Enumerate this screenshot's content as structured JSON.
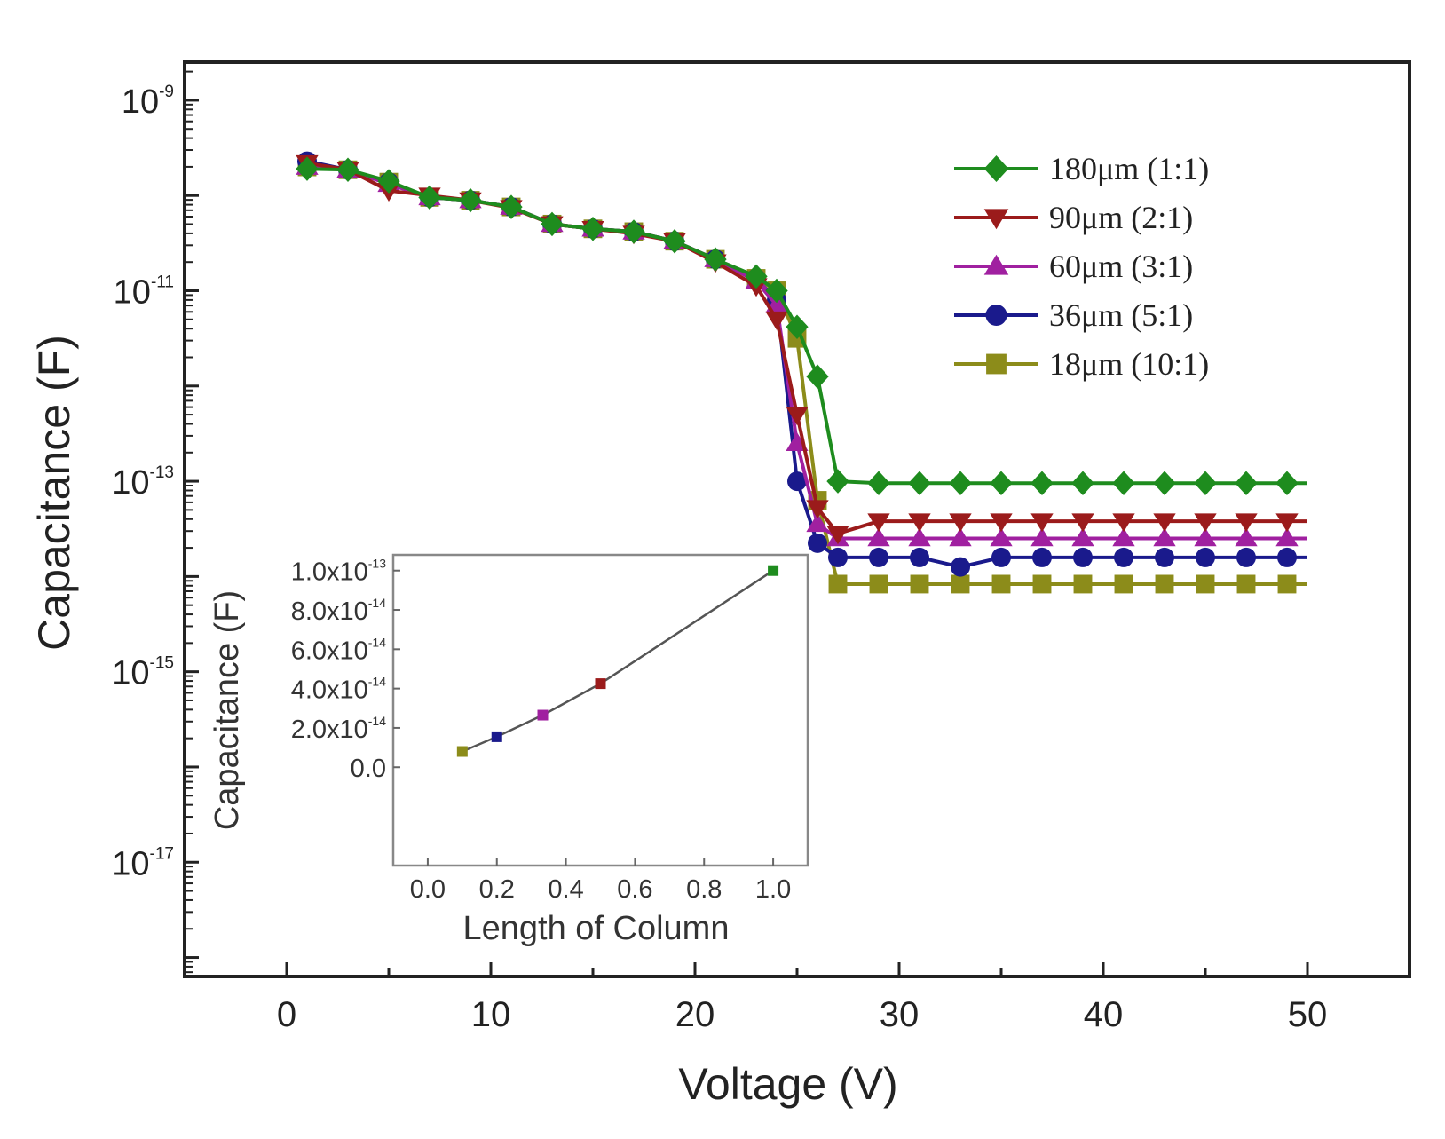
{
  "chart_data": [
    {
      "type": "line",
      "title": "",
      "xlabel": "Voltage (V)",
      "ylabel": "Capacitance (F)",
      "xscale": "linear",
      "yscale": "log",
      "xlim": [
        -5,
        55
      ],
      "ylim_exp": [
        -18.2,
        -8.6
      ],
      "xticks": [
        0,
        10,
        20,
        30,
        40,
        50
      ],
      "xtick_labels": [
        "0",
        "10",
        "20",
        "30",
        "40",
        "50"
      ],
      "ytick_labels": [
        {
          "exp": -9,
          "base": "10",
          "sup": "-9"
        },
        {
          "exp": -11,
          "base": "10",
          "sup": "-11"
        },
        {
          "exp": -13,
          "base": "10",
          "sup": "-13"
        },
        {
          "exp": -15,
          "base": "10",
          "sup": "-15"
        },
        {
          "exp": -17,
          "base": "10",
          "sup": "-17"
        }
      ],
      "legend_position": "top-right",
      "x": [
        1,
        3,
        5,
        7,
        9,
        11,
        13,
        15,
        17,
        19,
        21,
        23,
        24,
        25,
        26,
        27,
        29,
        31,
        33,
        35,
        37,
        39,
        41,
        43,
        45,
        47,
        49,
        50
      ],
      "series": [
        {
          "name": "180μm (1:1)",
          "color": "#1e8c1e",
          "marker": "diamond",
          "log10_values": [
            -9.72,
            -9.73,
            -9.85,
            -10.02,
            -10.05,
            -10.12,
            -10.3,
            -10.35,
            -10.38,
            -10.48,
            -10.67,
            -10.85,
            -11.0,
            -11.38,
            -11.9,
            -13.0,
            -13.02,
            -13.02,
            -13.02,
            -13.02,
            -13.02,
            -13.02,
            -13.02,
            -13.02,
            -13.02,
            -13.02,
            -13.02,
            -13.02
          ]
        },
        {
          "name": "90μm (2:1)",
          "color": "#9b1b1b",
          "marker": "triangle-down",
          "log10_values": [
            -9.66,
            -9.73,
            -9.95,
            -10.0,
            -10.05,
            -10.13,
            -10.3,
            -10.35,
            -10.4,
            -10.48,
            -10.7,
            -10.95,
            -11.3,
            -12.3,
            -13.28,
            -13.55,
            -13.42,
            -13.42,
            -13.42,
            -13.42,
            -13.42,
            -13.42,
            -13.42,
            -13.42,
            -13.42,
            -13.42,
            -13.42,
            -13.42
          ]
        },
        {
          "name": "60μm (3:1)",
          "color": "#a020a0",
          "marker": "triangle-up",
          "log10_values": [
            -9.7,
            -9.73,
            -9.88,
            -10.02,
            -10.05,
            -10.12,
            -10.3,
            -10.35,
            -10.38,
            -10.48,
            -10.67,
            -10.9,
            -11.15,
            -12.6,
            -13.45,
            -13.6,
            -13.6,
            -13.6,
            -13.6,
            -13.6,
            -13.6,
            -13.6,
            -13.6,
            -13.6,
            -13.6,
            -13.6,
            -13.6,
            -13.6
          ]
        },
        {
          "name": "36μm (5:1)",
          "color": "#1a1a8c",
          "marker": "circle",
          "log10_values": [
            -9.64,
            -9.73,
            -9.86,
            -10.02,
            -10.05,
            -10.12,
            -10.3,
            -10.35,
            -10.38,
            -10.48,
            -10.67,
            -10.87,
            -11.1,
            -13.0,
            -13.65,
            -13.8,
            -13.8,
            -13.8,
            -13.9,
            -13.8,
            -13.8,
            -13.8,
            -13.8,
            -13.8,
            -13.8,
            -13.8,
            -13.8,
            -13.8
          ]
        },
        {
          "name": "18μm (10:1)",
          "color": "#8c8c1a",
          "marker": "square",
          "log10_values": [
            -9.7,
            -9.73,
            -9.86,
            -10.02,
            -10.05,
            -10.12,
            -10.3,
            -10.35,
            -10.38,
            -10.48,
            -10.67,
            -10.87,
            -11.0,
            -11.5,
            -13.2,
            -14.08,
            -14.08,
            -14.08,
            -14.08,
            -14.08,
            -14.08,
            -14.08,
            -14.08,
            -14.08,
            -14.08,
            -14.08,
            -14.08,
            -14.08
          ]
        }
      ]
    },
    {
      "type": "line",
      "title": "",
      "xlabel": "Length of Column",
      "ylabel": "Capacitance (F)",
      "xlim": [
        -0.1,
        1.1
      ],
      "ylim": [
        -0.5,
        1.08
      ],
      "xticks": [
        0.0,
        0.2,
        0.4,
        0.6,
        0.8,
        1.0
      ],
      "xtick_labels": [
        "0.0",
        "0.2",
        "0.4",
        "0.6",
        "0.8",
        "1.0"
      ],
      "yticks": [
        0.0,
        0.2,
        0.4,
        0.6,
        0.8,
        1.0
      ],
      "ytick_labels": [
        {
          "value": 0.0,
          "base": "0.0",
          "sup": ""
        },
        {
          "value": 0.2,
          "base": "2.0x10",
          "sup": "-14"
        },
        {
          "value": 0.4,
          "base": "4.0x10",
          "sup": "-14"
        },
        {
          "value": 0.6,
          "base": "6.0x10",
          "sup": "-14"
        },
        {
          "value": 0.8,
          "base": "8.0x10",
          "sup": "-14"
        },
        {
          "value": 1.0,
          "base": "1.0x10",
          "sup": "-13"
        }
      ],
      "y_unit_note": "values in units of 1e-13 F",
      "x": [
        0.1,
        0.2,
        0.333,
        0.5,
        1.0
      ],
      "values": [
        0.08,
        0.155,
        0.265,
        0.425,
        1.0
      ],
      "point_colors": [
        "#8c8c1a",
        "#1a1a8c",
        "#a020a0",
        "#9b1b1b",
        "#1e8c1e"
      ]
    }
  ]
}
